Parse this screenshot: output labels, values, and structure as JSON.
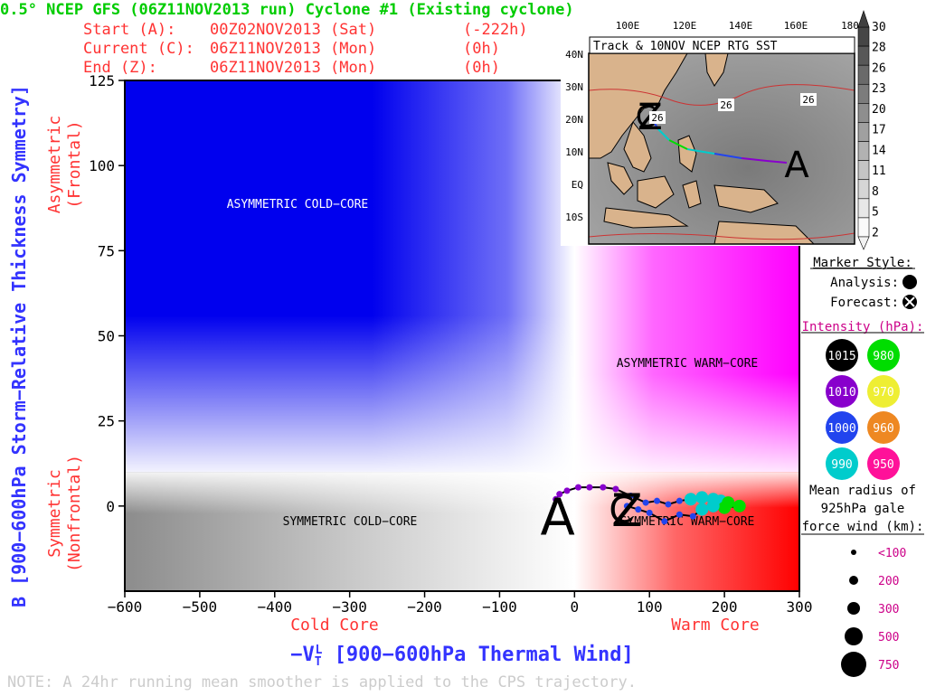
{
  "header": {
    "title": "0.5° NCEP GFS (06Z11NOV2013 run) Cyclone #1 (Existing cyclone)",
    "lines": [
      {
        "label": "Start (A):",
        "date": "00Z02NOV2013 (Sat)",
        "offset": "(-222h)"
      },
      {
        "label": "Current (C):",
        "date": "06Z11NOV2013 (Mon)",
        "offset": "(0h)"
      },
      {
        "label": "End (Z):",
        "date": "06Z11NOV2013 (Mon)",
        "offset": "(0h)"
      }
    ]
  },
  "note": "NOTE:  A 24hr running mean smoother is applied to the CPS trajectory.",
  "colors": {
    "cold_asym": "#0000ee",
    "warm_asym": "#ff00ff",
    "cold_sym": "#8c8c8c",
    "warm_sym": "#ff0000",
    "title_green": "#00cc00",
    "header_red": "#ff3333",
    "axis_blue": "#3333ff",
    "axis_red": "#ff3333",
    "magenta_text": "#cc0088"
  },
  "chart_data": {
    "type": "scatter",
    "xlabel_prefix": "−V",
    "xlabel_sub": "T",
    "xlabel_sup": "L",
    "xlabel_suffix": " [900−600hPa Thermal Wind]",
    "ylabel": "B [900−600hPa Storm−Relative Thickness Symmetry]",
    "xlim": [
      -600,
      300
    ],
    "ylim": [
      -25,
      125
    ],
    "x_ticks": [
      -600,
      -500,
      -400,
      -300,
      -200,
      -100,
      0,
      100,
      200,
      300
    ],
    "x_tick_labels": [
      "−600",
      "−500",
      "−400",
      "−300",
      "−200",
      "−100",
      "0",
      "100",
      "200",
      "300"
    ],
    "y_ticks": [
      0,
      25,
      50,
      75,
      100,
      125
    ],
    "y_tick_labels": [
      "0",
      "25",
      "50",
      "75",
      "100",
      "125"
    ],
    "x_side_labels": {
      "cold": "Cold Core",
      "warm": "Warm Core"
    },
    "y_side_labels": {
      "asym": [
        "Asymmetric",
        "(Frontal)"
      ],
      "sym": [
        "Symmetric",
        "(Nonfrontal)"
      ]
    },
    "quadrants": {
      "asym_cold": "ASYMMETRIC COLD−CORE",
      "asym_warm": "ASYMMETRIC WARM−CORE",
      "sym_cold": "SYMMETRIC COLD−CORE",
      "sym_warm": "SYMMETRIC WARM−CORE"
    },
    "b_threshold": 10,
    "markers": {
      "start": "A",
      "current": "C",
      "end": "Z"
    },
    "start_point": {
      "x": -25,
      "y": -1
    },
    "end_point": {
      "x": 70,
      "y": 0
    },
    "trajectory": [
      {
        "x": -25,
        "y": 2,
        "mslp": 1010
      },
      {
        "x": -20,
        "y": 3.5,
        "mslp": 1010
      },
      {
        "x": -10,
        "y": 4.5,
        "mslp": 1010
      },
      {
        "x": 5,
        "y": 5.5,
        "mslp": 1010
      },
      {
        "x": 20,
        "y": 5.5,
        "mslp": 1010
      },
      {
        "x": 38,
        "y": 5.5,
        "mslp": 1010
      },
      {
        "x": 55,
        "y": 5,
        "mslp": 1010
      },
      {
        "x": 75,
        "y": 3,
        "mslp": 1000
      },
      {
        "x": 95,
        "y": 1,
        "mslp": 1000
      },
      {
        "x": 110,
        "y": 1.5,
        "mslp": 1000
      },
      {
        "x": 125,
        "y": 0.5,
        "mslp": 1000
      },
      {
        "x": 140,
        "y": 1.5,
        "mslp": 1000
      },
      {
        "x": 155,
        "y": 2,
        "mslp": 990
      },
      {
        "x": 170,
        "y": 2.5,
        "mslp": 990
      },
      {
        "x": 185,
        "y": 2,
        "mslp": 990
      },
      {
        "x": 195,
        "y": 1.5,
        "mslp": 990
      },
      {
        "x": 205,
        "y": 1,
        "mslp": 980
      },
      {
        "x": 220,
        "y": 0,
        "mslp": 980
      },
      {
        "x": 200,
        "y": -0.5,
        "mslp": 980
      },
      {
        "x": 185,
        "y": 0,
        "mslp": 990
      },
      {
        "x": 170,
        "y": -1,
        "mslp": 990
      },
      {
        "x": 158,
        "y": -3,
        "mslp": 1000
      },
      {
        "x": 140,
        "y": -2.5,
        "mslp": 1000
      },
      {
        "x": 120,
        "y": -4.5,
        "mslp": 1000
      },
      {
        "x": 100,
        "y": -2,
        "mslp": 1000
      },
      {
        "x": 85,
        "y": -1,
        "mslp": 1000
      },
      {
        "x": 70,
        "y": 0,
        "mslp": 1000
      }
    ]
  },
  "inset": {
    "title": "Track & 10NOV NCEP RTG SST",
    "lon_labels": [
      "100E",
      "120E",
      "140E",
      "160E",
      "180"
    ],
    "lat_labels": [
      "40N",
      "30N",
      "20N",
      "10N",
      "EQ",
      "10S"
    ],
    "sst_labels": [
      "26",
      "26",
      "26"
    ],
    "markers": {
      "start": "A",
      "end": "Z",
      "current": "C"
    },
    "colorbar_labels": [
      "30",
      "28",
      "26",
      "23",
      "20",
      "17",
      "14",
      "11",
      "8",
      "5",
      "2"
    ]
  },
  "legend": {
    "marker_style_title": "Marker Style:",
    "analysis_label": "Analysis:",
    "forecast_label": "Forecast:",
    "intensity_title": "Intensity (hPa):",
    "intensity": [
      {
        "value": "1015",
        "color": "#000000",
        "text_color": "#ffffff"
      },
      {
        "value": "980",
        "color": "#00dd00",
        "text_color": "#ffffff"
      },
      {
        "value": "1010",
        "color": "#8800cc",
        "text_color": "#ffffff"
      },
      {
        "value": "970",
        "color": "#eeee33",
        "text_color": "#ffffff"
      },
      {
        "value": "1000",
        "color": "#2244ee",
        "text_color": "#ffffff"
      },
      {
        "value": "960",
        "color": "#ee8822",
        "text_color": "#ffffff"
      },
      {
        "value": "990",
        "color": "#00cccc",
        "text_color": "#ffffff"
      },
      {
        "value": "950",
        "color": "#ff1199",
        "text_color": "#ffffff"
      }
    ],
    "radius_title": [
      "Mean radius of",
      "925hPa gale",
      "force wind (km):"
    ],
    "radius": [
      {
        "label": "<100",
        "r": 3
      },
      {
        "label": "200",
        "r": 5
      },
      {
        "label": "300",
        "r": 7
      },
      {
        "label": "500",
        "r": 10
      },
      {
        "label": "750",
        "r": 14
      }
    ]
  }
}
